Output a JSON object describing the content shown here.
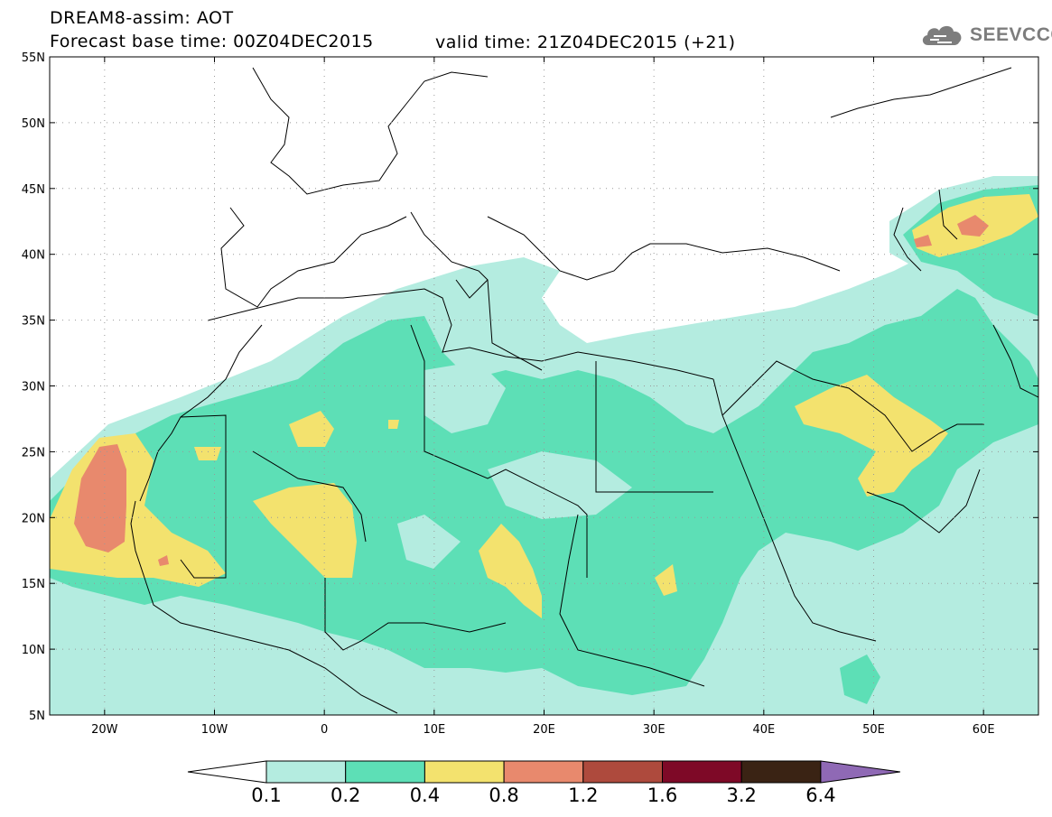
{
  "header": {
    "title_line1": "DREAM8-assim: AOT",
    "title_line2": "Forecast base time: 00Z04DEC2015",
    "valid_time": "valid time: 21Z04DEC2015 (+21)"
  },
  "logo": {
    "text": "SEEVCCC",
    "icon": "cloud-icon"
  },
  "map": {
    "projection": "lat-lon",
    "lon_range": [
      -25,
      65
    ],
    "lat_range": [
      5,
      55
    ],
    "lat_ticks": [
      "5N",
      "10N",
      "15N",
      "20N",
      "25N",
      "30N",
      "35N",
      "40N",
      "45N",
      "50N",
      "55N"
    ],
    "lon_ticks": [
      "20W",
      "10W",
      "0",
      "10E",
      "20E",
      "30E",
      "40E",
      "50E",
      "60E"
    ],
    "gridlines": "dotted"
  },
  "legend": {
    "labels": [
      "0.1",
      "0.2",
      "0.4",
      "0.8",
      "1.2",
      "1.6",
      "3.2",
      "6.4"
    ],
    "colors": [
      "#ffffff",
      "#b4ece0",
      "#5ddfb6",
      "#f3e26e",
      "#e8896d",
      "#ae4a3d",
      "#7e0927",
      "#3a2314",
      "#8f69b5"
    ]
  }
}
